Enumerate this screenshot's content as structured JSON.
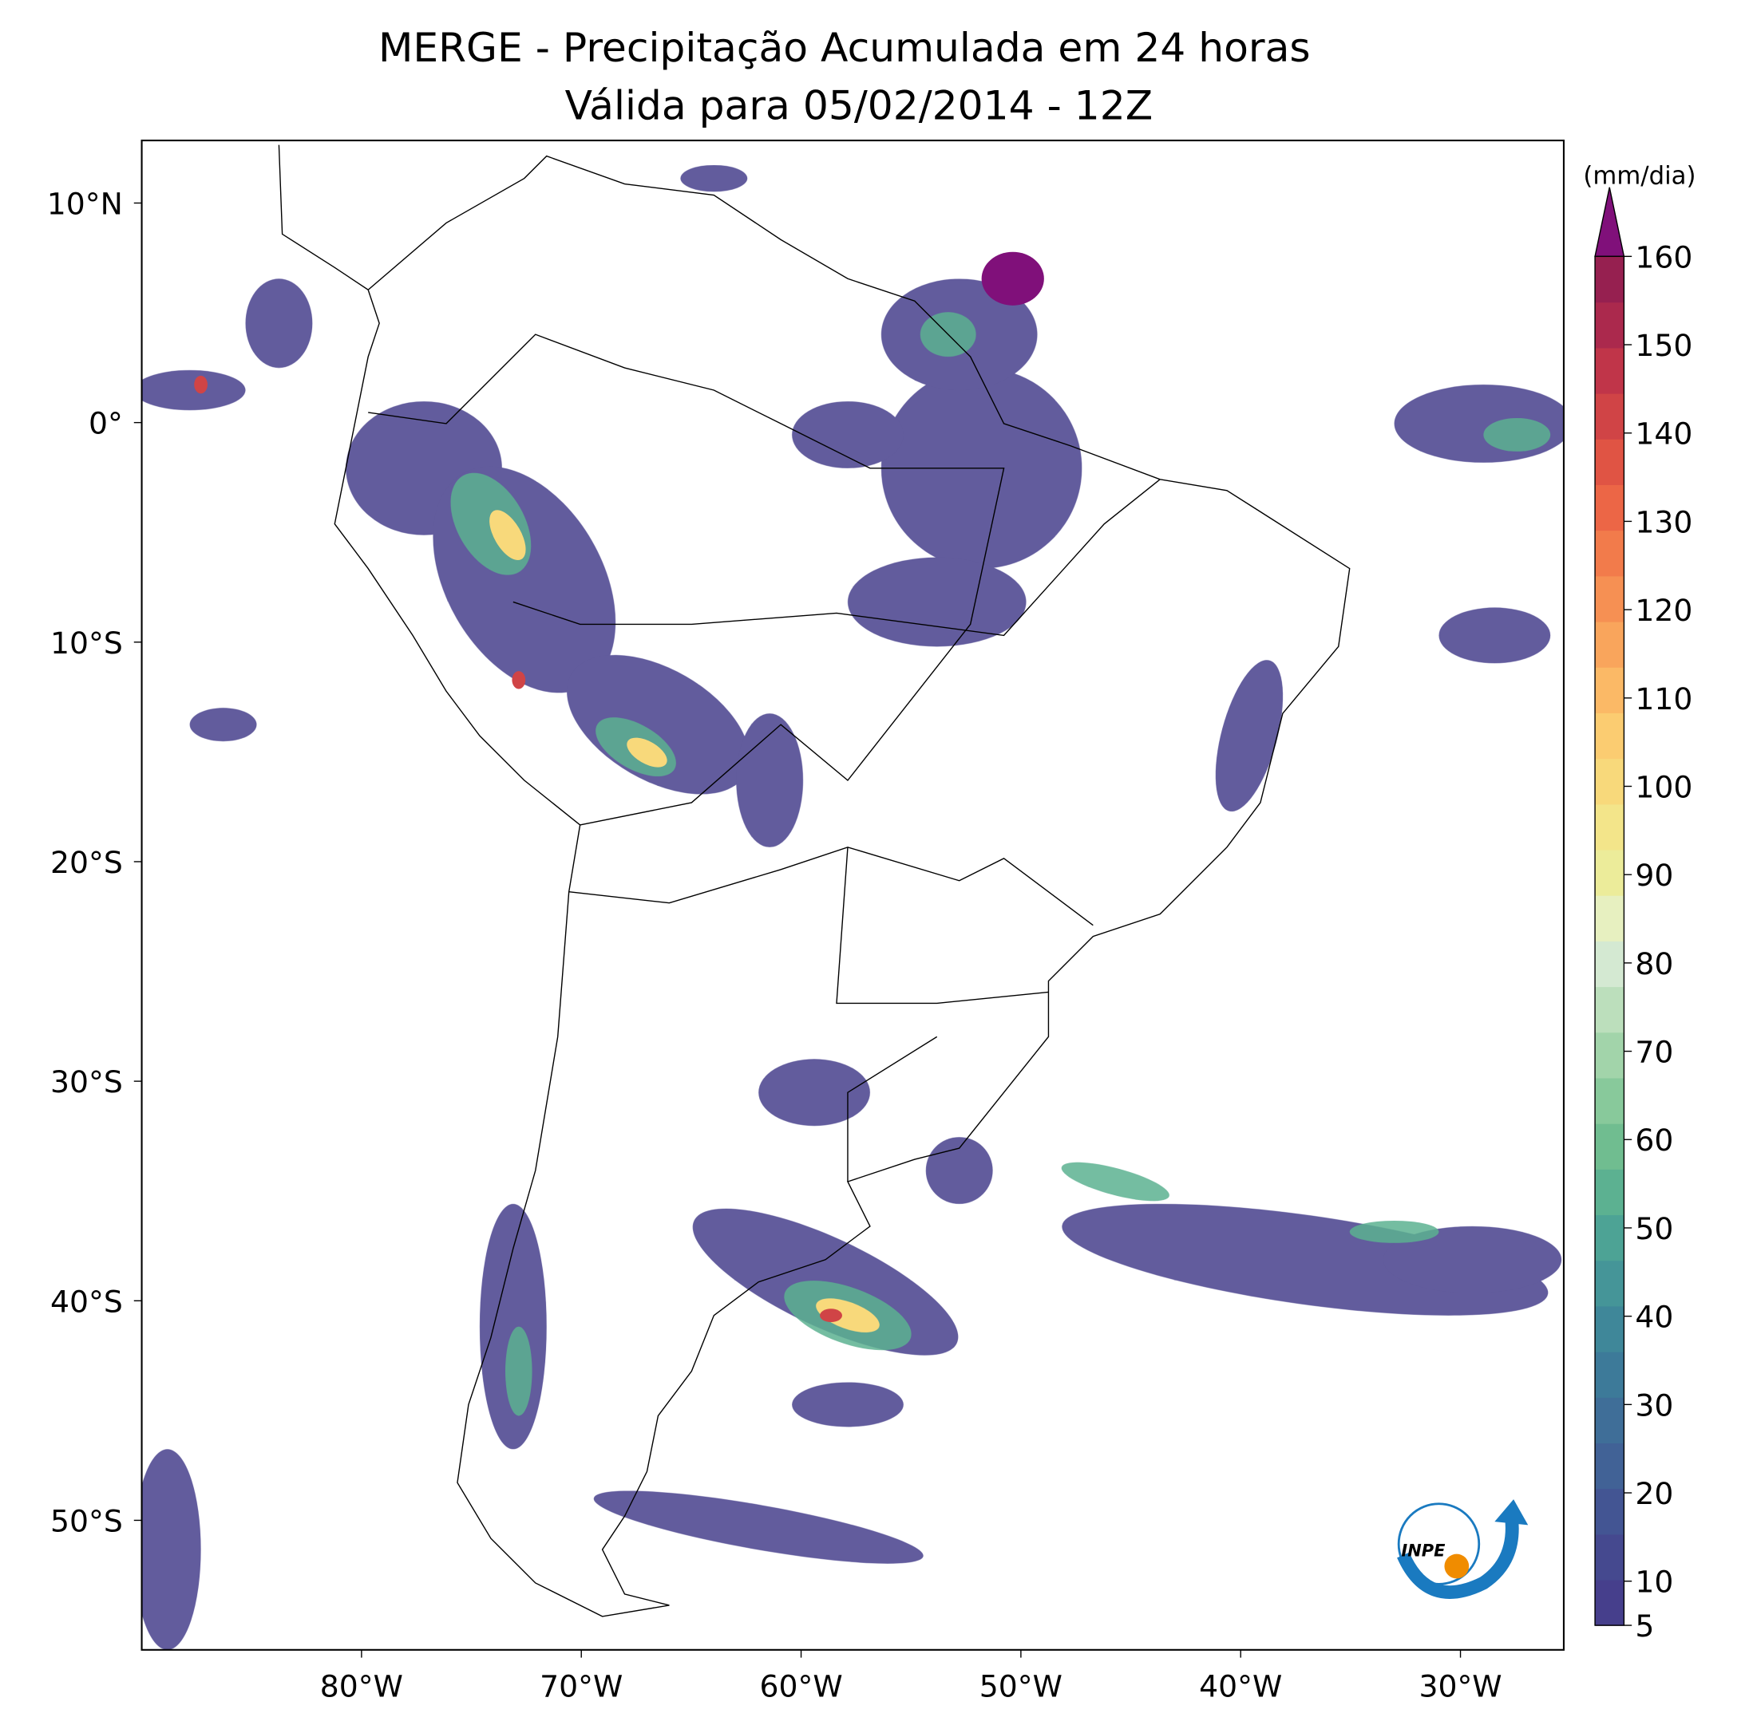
{
  "title": "MERGE - Precipitação Acumulada em 24 horas",
  "subtitle": "Válida para 05/02/2014 - 12Z",
  "map": {
    "lonlim": [
      -90,
      -25.3
    ],
    "latlim": [
      -55.9,
      12.85
    ],
    "lon_ticks": [
      {
        "value": -80,
        "label": "80°W"
      },
      {
        "value": -70,
        "label": "70°W"
      },
      {
        "value": -60,
        "label": "60°W"
      },
      {
        "value": -50,
        "label": "50°W"
      },
      {
        "value": -40,
        "label": "40°W"
      },
      {
        "value": -30,
        "label": "30°W"
      }
    ],
    "lat_ticks": [
      {
        "value": 10,
        "label": "10°N"
      },
      {
        "value": 0,
        "label": "0°"
      },
      {
        "value": -10,
        "label": "10°S"
      },
      {
        "value": -20,
        "label": "20°S"
      },
      {
        "value": -30,
        "label": "30°S"
      },
      {
        "value": -40,
        "label": "40°S"
      },
      {
        "value": -50,
        "label": "50°S"
      }
    ]
  },
  "colorbar": {
    "label": "(mm/dia)",
    "lim": [
      5,
      160
    ],
    "ticks": [
      5,
      10,
      20,
      30,
      40,
      50,
      60,
      70,
      80,
      90,
      100,
      110,
      120,
      130,
      140,
      150,
      160
    ],
    "colors": [
      "#463f8c",
      "#45498f",
      "#435593",
      "#416296",
      "#3f6e98",
      "#3d7a99",
      "#3f8799",
      "#459598",
      "#4da395",
      "#5cb191",
      "#70bd90",
      "#88c99b",
      "#a2d4aa",
      "#bcdfbc",
      "#d4e9d2",
      "#e7f0c0",
      "#ecec9a",
      "#f3e58a",
      "#f8d97b",
      "#fbcc71",
      "#fbb966",
      "#f9a55c",
      "#f69053",
      "#f27b4b",
      "#ec6646",
      "#e05444",
      "#d04446",
      "#c03549",
      "#ab294d",
      "#962050"
    ],
    "extend_color": "#80107a"
  },
  "logo": "INPE"
}
